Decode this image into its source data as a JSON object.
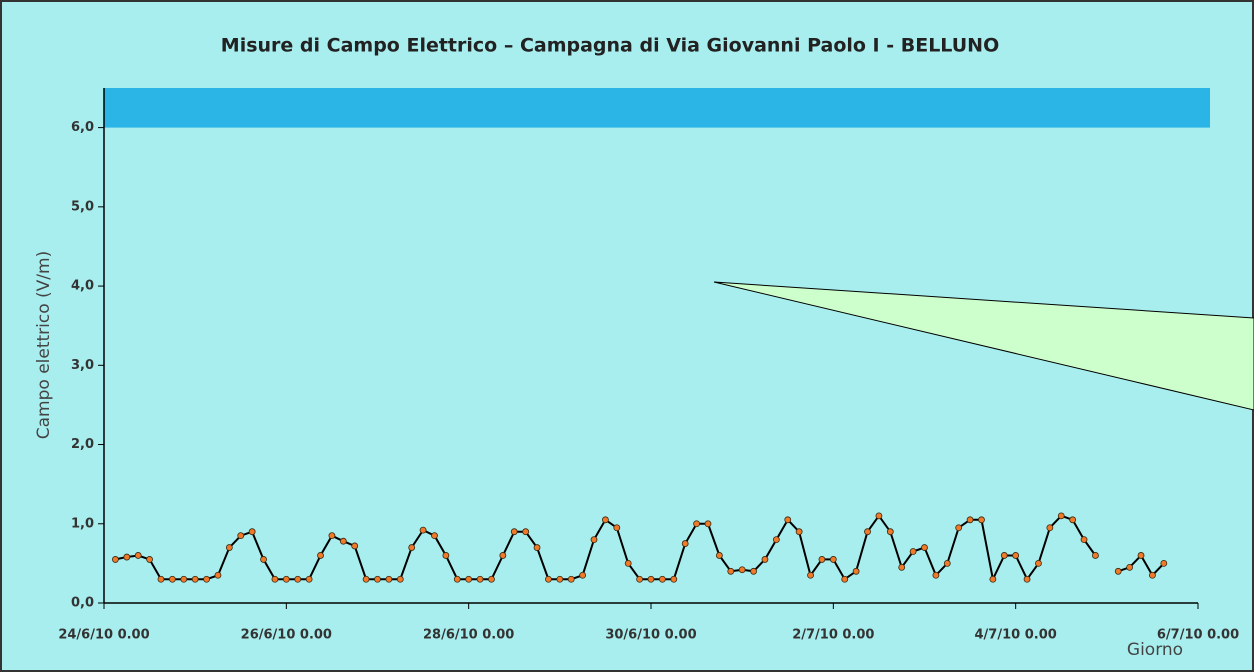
{
  "chart_data": {
    "type": "line",
    "title": "Misure di Campo Elettrico – Campagna di Via Giovanni Paolo I - BELLUNO",
    "y_label": "Campo elettrico (V/m)",
    "x_label": "Giorno",
    "limit_band": [
      6.0,
      6.5
    ],
    "limit_color": "#2bb5e6",
    "xlim": [
      "2010-06-24T00:00",
      "2010-07-06T00:00"
    ],
    "ylim": [
      0,
      6.5
    ],
    "yticks": [
      {
        "value": 0,
        "label": "0,0"
      },
      {
        "value": 1,
        "label": "1,0"
      },
      {
        "value": 2,
        "label": "2,0"
      },
      {
        "value": 3,
        "label": "3,0"
      },
      {
        "value": 4,
        "label": "4,0"
      },
      {
        "value": 5,
        "label": "5,0"
      },
      {
        "value": 6,
        "label": "6,0"
      }
    ],
    "xticks": [
      {
        "value": "2010-06-24T00:00",
        "label": "24/6/10 0.00"
      },
      {
        "value": "2010-06-26T00:00",
        "label": "26/6/10 0.00"
      },
      {
        "value": "2010-06-28T00:00",
        "label": "28/6/10 0.00"
      },
      {
        "value": "2010-06-30T00:00",
        "label": "30/6/10 0.00"
      },
      {
        "value": "2010-07-02T00:00",
        "label": "2/7/10 0.00"
      },
      {
        "value": "2010-07-04T00:00",
        "label": "4/7/10 0.00"
      },
      {
        "value": "2010-07-06T00:00",
        "label": "6/7/10 0.00"
      }
    ],
    "x": [
      "2010-06-24T03:00",
      "2010-06-24T06:00",
      "2010-06-24T09:00",
      "2010-06-24T12:00",
      "2010-06-24T15:00",
      "2010-06-24T18:00",
      "2010-06-24T21:00",
      "2010-06-25T00:00",
      "2010-06-25T03:00",
      "2010-06-25T06:00",
      "2010-06-25T09:00",
      "2010-06-25T12:00",
      "2010-06-25T15:00",
      "2010-06-25T18:00",
      "2010-06-25T21:00",
      "2010-06-26T00:00",
      "2010-06-26T03:00",
      "2010-06-26T06:00",
      "2010-06-26T09:00",
      "2010-06-26T12:00",
      "2010-06-26T15:00",
      "2010-06-26T18:00",
      "2010-06-26T21:00",
      "2010-06-27T00:00",
      "2010-06-27T03:00",
      "2010-06-27T06:00",
      "2010-06-27T09:00",
      "2010-06-27T12:00",
      "2010-06-27T15:00",
      "2010-06-27T18:00",
      "2010-06-27T21:00",
      "2010-06-28T00:00",
      "2010-06-28T03:00",
      "2010-06-28T06:00",
      "2010-06-28T09:00",
      "2010-06-28T12:00",
      "2010-06-28T15:00",
      "2010-06-28T18:00",
      "2010-06-28T21:00",
      "2010-06-29T00:00",
      "2010-06-29T03:00",
      "2010-06-29T06:00",
      "2010-06-29T09:00",
      "2010-06-29T12:00",
      "2010-06-29T15:00",
      "2010-06-29T18:00",
      "2010-06-29T21:00",
      "2010-06-30T00:00",
      "2010-06-30T03:00",
      "2010-06-30T06:00",
      "2010-06-30T09:00",
      "2010-06-30T12:00",
      "2010-06-30T15:00",
      "2010-06-30T18:00",
      "2010-06-30T21:00",
      "2010-07-01T00:00",
      "2010-07-01T03:00",
      "2010-07-01T06:00",
      "2010-07-01T09:00",
      "2010-07-01T12:00",
      "2010-07-01T15:00",
      "2010-07-01T18:00",
      "2010-07-01T21:00",
      "2010-07-02T00:00",
      "2010-07-02T03:00",
      "2010-07-02T06:00",
      "2010-07-02T09:00",
      "2010-07-02T12:00",
      "2010-07-02T15:00",
      "2010-07-02T18:00",
      "2010-07-02T21:00",
      "2010-07-03T00:00",
      "2010-07-03T03:00",
      "2010-07-03T06:00",
      "2010-07-03T09:00",
      "2010-07-03T12:00",
      "2010-07-03T15:00",
      "2010-07-03T18:00",
      "2010-07-03T21:00",
      "2010-07-04T00:00",
      "2010-07-04T03:00",
      "2010-07-04T06:00",
      "2010-07-04T09:00",
      "2010-07-04T12:00",
      "2010-07-04T15:00",
      "2010-07-04T18:00",
      "2010-07-04T21:00",
      "2010-07-05T00:00",
      "2010-07-05T03:00",
      "2010-07-05T06:00",
      "2010-07-05T09:00",
      "2010-07-05T12:00",
      "2010-07-05T15:00"
    ],
    "series": [
      {
        "color": "#f07a2a",
        "line_color": "#000000",
        "values": [
          0.55,
          0.58,
          0.6,
          0.55,
          0.3,
          0.3,
          0.3,
          0.3,
          0.3,
          0.35,
          0.7,
          0.85,
          0.9,
          0.55,
          0.3,
          0.3,
          0.3,
          0.3,
          0.6,
          0.85,
          0.78,
          0.72,
          0.3,
          0.3,
          0.3,
          0.3,
          0.7,
          0.92,
          0.85,
          0.6,
          0.3,
          0.3,
          0.3,
          0.3,
          0.6,
          0.9,
          0.9,
          0.7,
          0.3,
          0.3,
          0.3,
          0.35,
          0.8,
          1.05,
          0.95,
          0.5,
          0.3,
          0.3,
          0.3,
          0.3,
          0.75,
          1.0,
          1.0,
          0.6,
          0.4,
          0.42,
          0.4,
          0.55,
          0.8,
          1.05,
          0.9,
          0.35,
          0.55,
          0.55,
          0.3,
          0.4,
          0.9,
          1.1,
          0.9,
          0.45,
          0.65,
          0.7,
          0.35,
          0.5,
          0.95,
          1.05,
          1.05,
          0.3,
          0.6,
          0.6,
          0.3,
          0.5,
          0.95,
          1.1,
          1.05,
          0.8,
          0.6,
          null,
          0.4,
          0.45,
          0.6,
          0.35,
          0.5
        ]
      }
    ]
  }
}
